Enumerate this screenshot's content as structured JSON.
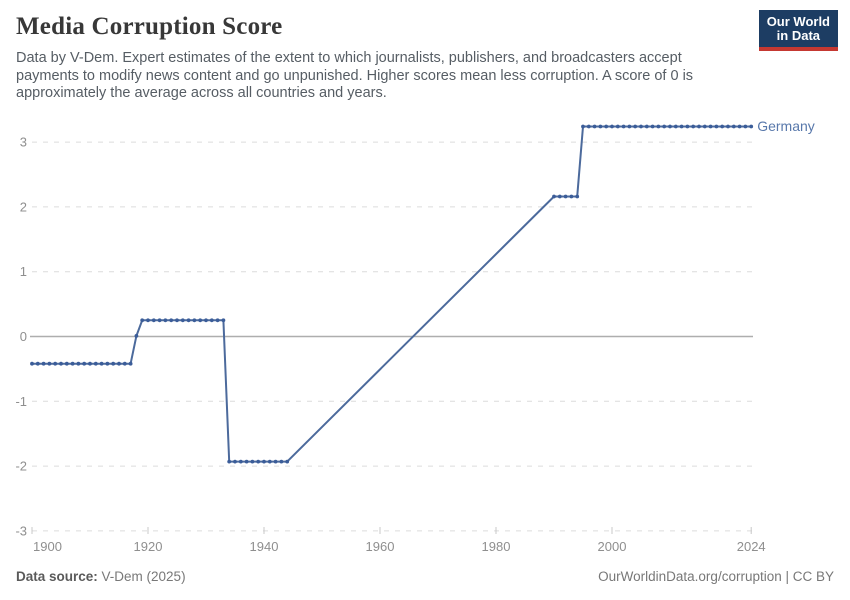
{
  "header": {
    "title": "Media Corruption Score",
    "subtitle_lines": [
      "Data by V-Dem. Expert estimates of the extent to which journalists, publishers, and broadcasters accept",
      "payments to modify news content and go unpunished. Higher scores mean less corruption. A score of 0 is",
      "approximately the average across all countries and years."
    ],
    "logo": {
      "line1": "Our World",
      "line2": "in Data",
      "bg_color": "#1d3d63",
      "accent_color": "#c53831"
    }
  },
  "footer": {
    "source_label": "Data source:",
    "source_value": " V-Dem (2025)",
    "credit": "OurWorldinData.org/corruption | CC BY"
  },
  "chart_data": {
    "type": "line",
    "title": "Media Corruption Score",
    "xlabel": "",
    "ylabel": "",
    "xlim": [
      1900,
      2024.5
    ],
    "ylim": [
      -3,
      3.4
    ],
    "x_ticks": [
      1900,
      1920,
      1940,
      1960,
      1980,
      2000,
      2024
    ],
    "y_ticks": [
      -3,
      -2,
      -1,
      0,
      1,
      2,
      3
    ],
    "grid": "horizontal dashed gridlines, solid line at zero",
    "legend_position": "label at end of line",
    "note": "no markers between 1944 and 1990 (data gap, straight connector line)",
    "colors": {
      "line": "#4c6a9c",
      "marker": "#3b5d99",
      "gridline": "#dcdcdc",
      "zero_line": "#aeaeae",
      "tick_text": "#8f8f8f"
    },
    "series": [
      {
        "name": "Germany",
        "color": "#4c6a9c",
        "points": [
          [
            1900,
            -0.42
          ],
          [
            1901,
            -0.42
          ],
          [
            1902,
            -0.42
          ],
          [
            1903,
            -0.42
          ],
          [
            1904,
            -0.42
          ],
          [
            1905,
            -0.42
          ],
          [
            1906,
            -0.42
          ],
          [
            1907,
            -0.42
          ],
          [
            1908,
            -0.42
          ],
          [
            1909,
            -0.42
          ],
          [
            1910,
            -0.42
          ],
          [
            1911,
            -0.42
          ],
          [
            1912,
            -0.42
          ],
          [
            1913,
            -0.42
          ],
          [
            1914,
            -0.42
          ],
          [
            1915,
            -0.42
          ],
          [
            1916,
            -0.42
          ],
          [
            1917,
            -0.42
          ],
          [
            1918,
            0.01
          ],
          [
            1919,
            0.25
          ],
          [
            1920,
            0.25
          ],
          [
            1921,
            0.25
          ],
          [
            1922,
            0.25
          ],
          [
            1923,
            0.25
          ],
          [
            1924,
            0.25
          ],
          [
            1925,
            0.25
          ],
          [
            1926,
            0.25
          ],
          [
            1927,
            0.25
          ],
          [
            1928,
            0.25
          ],
          [
            1929,
            0.25
          ],
          [
            1930,
            0.25
          ],
          [
            1931,
            0.25
          ],
          [
            1932,
            0.25
          ],
          [
            1933,
            0.25
          ],
          [
            1934,
            -1.93
          ],
          [
            1935,
            -1.93
          ],
          [
            1936,
            -1.93
          ],
          [
            1937,
            -1.93
          ],
          [
            1938,
            -1.93
          ],
          [
            1939,
            -1.93
          ],
          [
            1940,
            -1.93
          ],
          [
            1941,
            -1.93
          ],
          [
            1942,
            -1.93
          ],
          [
            1943,
            -1.93
          ],
          [
            1944,
            -1.93
          ],
          [
            1990,
            2.16
          ],
          [
            1991,
            2.16
          ],
          [
            1992,
            2.16
          ],
          [
            1993,
            2.16
          ],
          [
            1994,
            2.16
          ],
          [
            1995,
            3.24
          ],
          [
            1996,
            3.24
          ],
          [
            1997,
            3.24
          ],
          [
            1998,
            3.24
          ],
          [
            1999,
            3.24
          ],
          [
            2000,
            3.24
          ],
          [
            2001,
            3.24
          ],
          [
            2002,
            3.24
          ],
          [
            2003,
            3.24
          ],
          [
            2004,
            3.24
          ],
          [
            2005,
            3.24
          ],
          [
            2006,
            3.24
          ],
          [
            2007,
            3.24
          ],
          [
            2008,
            3.24
          ],
          [
            2009,
            3.24
          ],
          [
            2010,
            3.24
          ],
          [
            2011,
            3.24
          ],
          [
            2012,
            3.24
          ],
          [
            2013,
            3.24
          ],
          [
            2014,
            3.24
          ],
          [
            2015,
            3.24
          ],
          [
            2016,
            3.24
          ],
          [
            2017,
            3.24
          ],
          [
            2018,
            3.24
          ],
          [
            2019,
            3.24
          ],
          [
            2020,
            3.24
          ],
          [
            2021,
            3.24
          ],
          [
            2022,
            3.24
          ],
          [
            2023,
            3.24
          ],
          [
            2024,
            3.24
          ]
        ]
      }
    ]
  }
}
